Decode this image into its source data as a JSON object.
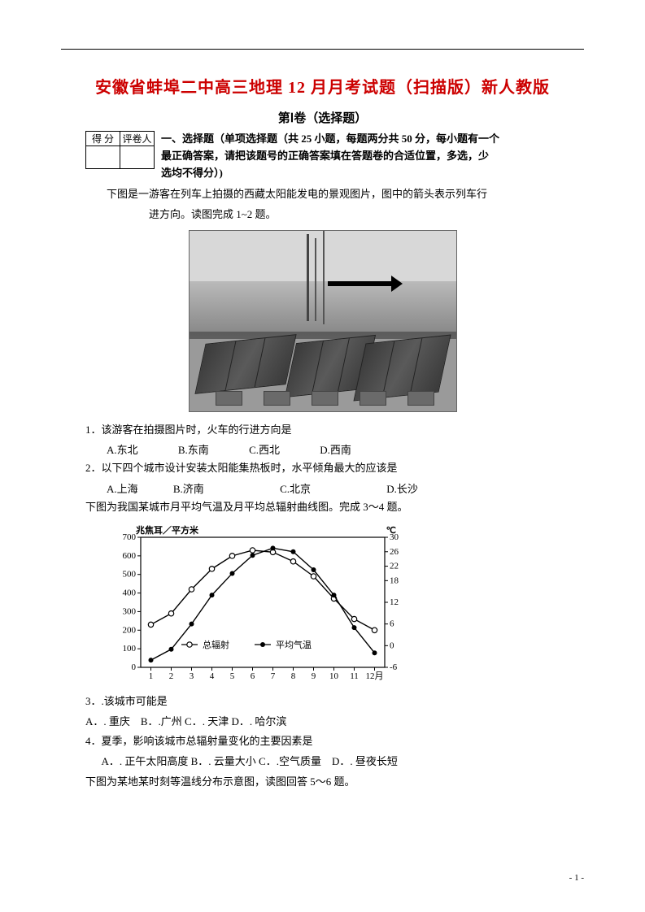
{
  "title_text": "安徽省蚌埠二中高三地理 12 月月考试题（扫描版）新人教版",
  "title_color": "#cc0000",
  "section_heading": "第Ⅰ卷（选择题）",
  "score_table": {
    "col1": "得 分",
    "col2": "评卷人"
  },
  "instructions_lines": [
    "一、选择题（单项选择题（共 25 小题，每题两分共 50 分，每小题有一个",
    "最正确答案，请把该题号的正确答案填在答题卷的合适位置，多选，少",
    "选均不得分）)"
  ],
  "intro_para1": "下图是一游客在列车上拍摄的西藏太阳能发电的景观图片，图中的箭头表示列车行",
  "intro_para2": "进方向。读图完成 1~2 题。",
  "photo_caption_arrow_color": "#000000",
  "q1": {
    "stem": "1．该游客在拍摄图片时，火车的行进方向是",
    "options": {
      "A": "A.东北",
      "B": "B.东南",
      "C": "C.西北",
      "D": "D.西南"
    }
  },
  "q2": {
    "stem": "2．以下四个城市设计安装太阳能集热板时，水平倾角最大的应该是",
    "options": {
      "A": "A.上海",
      "B": "B.济南",
      "C": "C.北京",
      "D": "D.长沙"
    }
  },
  "chart_intro": "下图为我国某城市月平均气温及月平均总辐射曲线图。完成 3～4 题。",
  "chart": {
    "type": "line",
    "y_left_label": "兆焦耳／平方米",
    "y_left_ticks": [
      0,
      100,
      200,
      300,
      400,
      500,
      600,
      700
    ],
    "y_left_lim": [
      0,
      700
    ],
    "y_right_label": "℃",
    "y_right_ticks": [
      -6,
      0,
      6,
      12,
      18,
      22,
      26,
      30
    ],
    "y_right_lim": [
      -6,
      30
    ],
    "x_ticks": [
      "1",
      "2",
      "3",
      "4",
      "5",
      "6",
      "7",
      "8",
      "9",
      "10",
      "11",
      "12月"
    ],
    "legend": {
      "series1": "总辐射",
      "series1_marker": "open-circle",
      "series2": "平均气温",
      "series2_marker": "filled-circle"
    },
    "radiation_values": [
      230,
      290,
      420,
      530,
      600,
      630,
      620,
      570,
      490,
      370,
      260,
      200
    ],
    "temp_values": [
      -4,
      -1,
      6,
      14,
      20,
      25,
      27,
      26,
      21,
      14,
      5,
      -2
    ],
    "line_color": "#000000",
    "bg_color": "#ffffff",
    "axis_color": "#000000",
    "font_size": 11,
    "line_width": 1.4
  },
  "q3": {
    "stem": "3．.该城市可能是",
    "options_line": "A．. 重庆　B．.广州 C．. 天津 D．. 哈尔滨"
  },
  "q4": {
    "stem": "4．夏季，影响该城市总辐射量变化的主要因素是",
    "options_line": "A．. 正午太阳高度  B．. 云量大小 C．.空气质量　D．. 昼夜长短"
  },
  "q5_intro": "下图为某地某时刻等温线分布示意图，读图回答 5～6 题。",
  "page_number": "- 1 -"
}
